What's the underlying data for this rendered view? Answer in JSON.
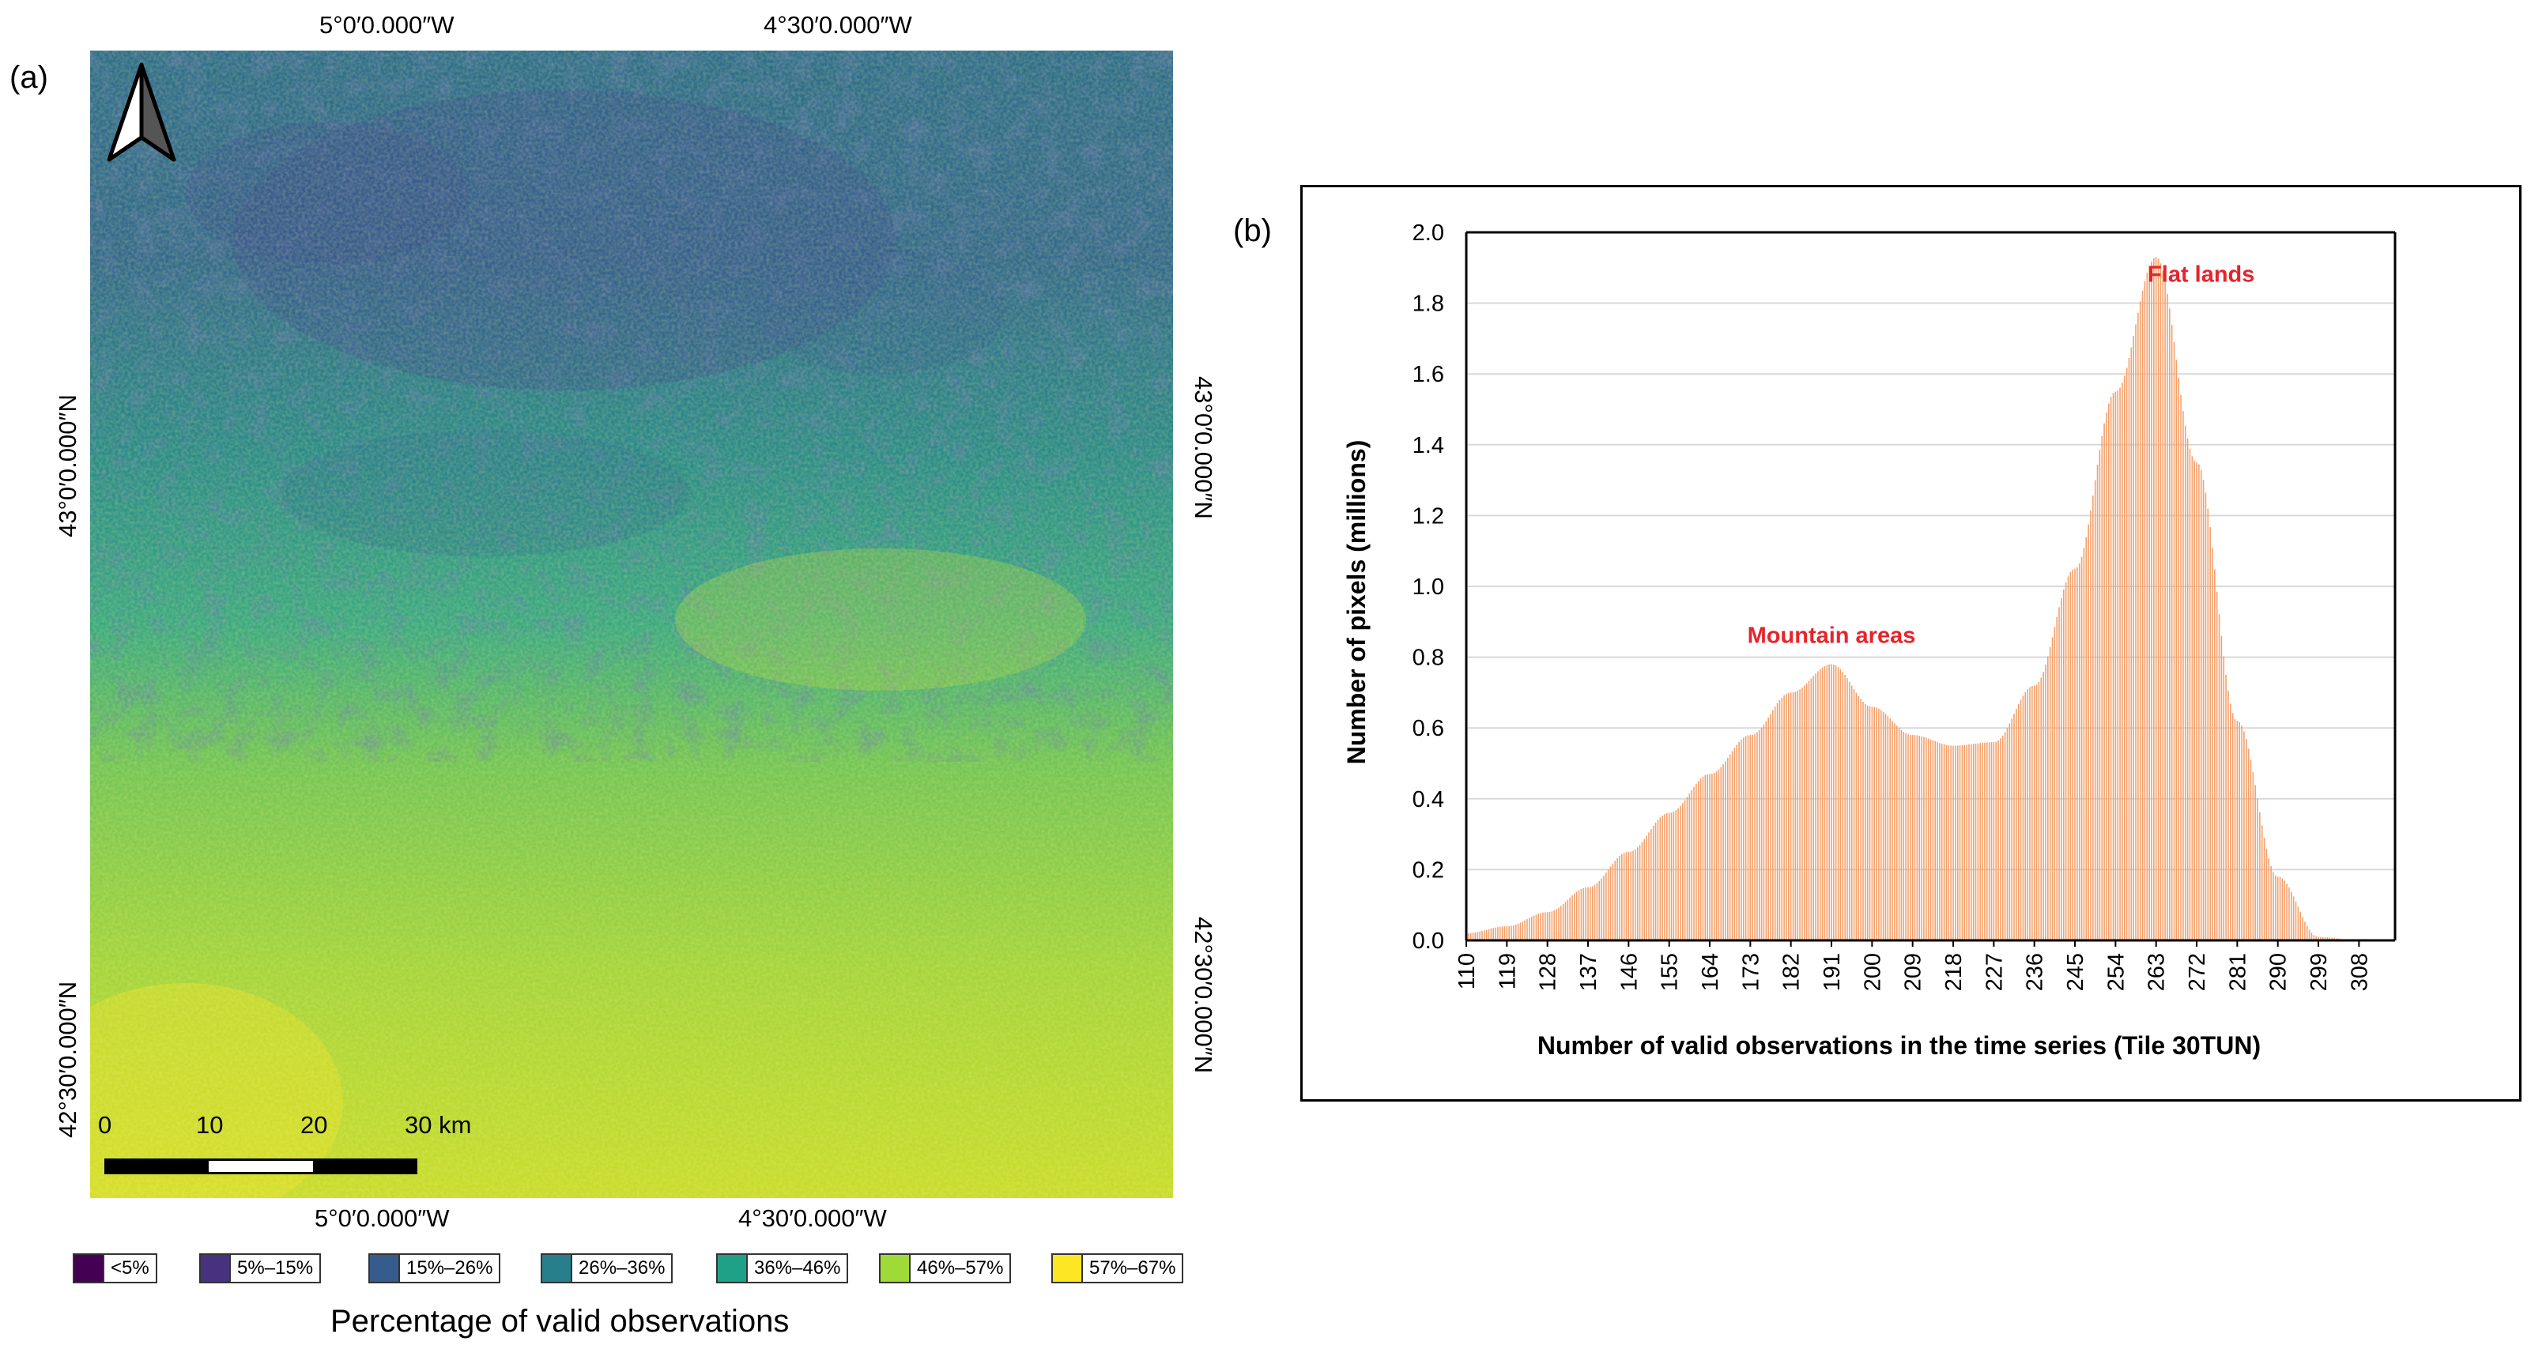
{
  "panel_a": {
    "label": "(a)",
    "top_coords": [
      "5°0′0.000″W",
      "4°30′0.000″W"
    ],
    "bottom_coords": [
      "5°0′0.000″W",
      "4°30′0.000″W"
    ],
    "left_coords": [
      "43°0′0.000″N",
      "42°30′0.000″N"
    ],
    "right_coords": [
      "43°0′0.000″N",
      "42°30′0.000″N"
    ],
    "scalebar": {
      "labels": [
        "0",
        "10",
        "20",
        "30 km"
      ]
    },
    "legend": {
      "title": "Percentage of valid observations",
      "items": [
        {
          "label": "<5%",
          "color": "#440154"
        },
        {
          "label": "5%–15%",
          "color": "#46327e"
        },
        {
          "label": "15%–26%",
          "color": "#365c8d"
        },
        {
          "label": "26%–36%",
          "color": "#277f8e"
        },
        {
          "label": "36%–46%",
          "color": "#1fa187"
        },
        {
          "label": "46%–57%",
          "color": "#a0da39"
        },
        {
          "label": "57%–67%",
          "color": "#fde725"
        }
      ]
    },
    "north_arrow_icon": "north-arrow-icon"
  },
  "panel_b": {
    "label": "(b)",
    "chart_data": {
      "type": "bar",
      "title": "",
      "xlabel": "Number of valid observations in the time series (Tile 30TUN)",
      "ylabel": "Number of pixels (millions)",
      "ylim": [
        0,
        2.0
      ],
      "yticks": [
        "0.0",
        "0.2",
        "0.4",
        "0.6",
        "0.8",
        "1.0",
        "1.2",
        "1.4",
        "1.6",
        "1.8",
        "2.0"
      ],
      "xtick_labels": [
        "110",
        "119",
        "128",
        "137",
        "146",
        "155",
        "164",
        "173",
        "182",
        "191",
        "200",
        "209",
        "218",
        "227",
        "236",
        "245",
        "254",
        "263",
        "272",
        "281",
        "290",
        "299",
        "308"
      ],
      "x_range": [
        110,
        316
      ],
      "bar_color": "#f4a16b",
      "curve_points": [
        [
          110,
          0.02
        ],
        [
          119,
          0.04
        ],
        [
          128,
          0.08
        ],
        [
          137,
          0.15
        ],
        [
          146,
          0.25
        ],
        [
          155,
          0.36
        ],
        [
          164,
          0.47
        ],
        [
          173,
          0.58
        ],
        [
          182,
          0.7
        ],
        [
          191,
          0.78
        ],
        [
          200,
          0.66
        ],
        [
          209,
          0.58
        ],
        [
          218,
          0.55
        ],
        [
          227,
          0.56
        ],
        [
          236,
          0.72
        ],
        [
          245,
          1.05
        ],
        [
          254,
          1.55
        ],
        [
          263,
          1.93
        ],
        [
          272,
          1.35
        ],
        [
          281,
          0.62
        ],
        [
          290,
          0.18
        ],
        [
          299,
          0.01
        ],
        [
          308,
          0.0
        ],
        [
          316,
          0.0
        ]
      ],
      "annotations": [
        {
          "text": "Mountain areas",
          "x": 191,
          "y": 0.84
        },
        {
          "text": "Flat lands",
          "x": 273,
          "y": 1.86
        }
      ]
    }
  }
}
